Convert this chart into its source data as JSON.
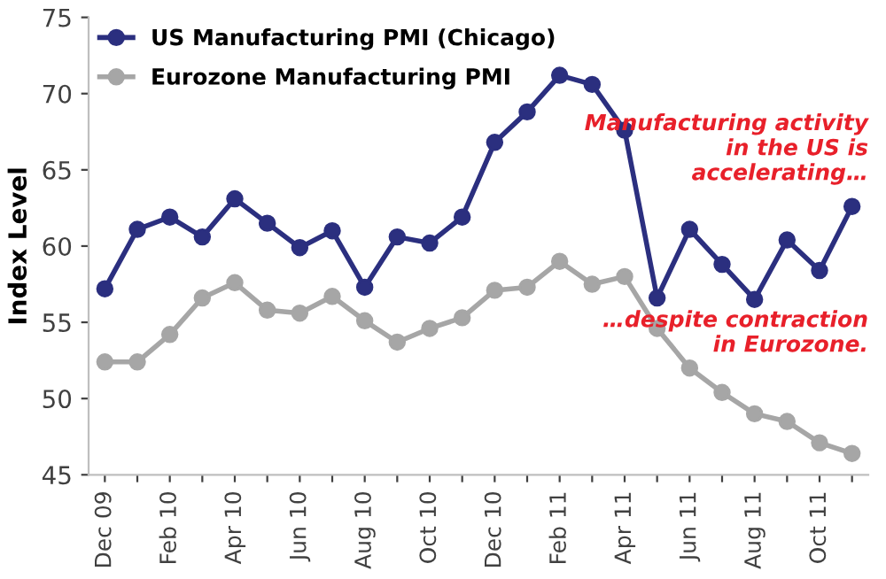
{
  "chart_data": {
    "type": "line",
    "ylabel": "Index Level",
    "categories": [
      "Dec 09",
      null,
      "Feb 10",
      null,
      "Apr 10",
      null,
      "Jun 10",
      null,
      "Aug 10",
      null,
      "Oct 10",
      null,
      "Dec 10",
      null,
      "Feb 11",
      null,
      "Apr 11",
      null,
      "Jun 11",
      null,
      "Aug 11",
      null,
      "Oct 11",
      null
    ],
    "series": [
      {
        "name": "US Manufacturing PMI (Chicago)",
        "color": "#2b2f7f",
        "values": [
          57.2,
          61.1,
          61.9,
          60.6,
          63.1,
          61.5,
          59.9,
          61.0,
          57.3,
          60.6,
          60.2,
          61.9,
          66.8,
          68.8,
          71.2,
          70.6,
          67.6,
          56.6,
          61.1,
          58.8,
          56.5,
          60.4,
          58.4,
          62.6
        ]
      },
      {
        "name": "Eurozone Manufacturing PMI",
        "color": "#a6a6a6",
        "values": [
          52.4,
          52.4,
          54.2,
          56.6,
          57.6,
          55.8,
          55.6,
          56.7,
          55.1,
          53.7,
          54.6,
          55.3,
          57.1,
          57.3,
          59.0,
          57.5,
          58.0,
          54.6,
          52.0,
          50.4,
          49.0,
          48.5,
          47.1,
          46.4
        ]
      }
    ],
    "ylim": [
      45,
      75
    ],
    "yticks": [
      45,
      50,
      55,
      60,
      65,
      70,
      75
    ],
    "grid": false,
    "legend": "top left",
    "marker": "circle",
    "line_style": "solid",
    "annotations": [
      "Manufacturing activity in the US is accelerating…",
      "…despite contraction in Eurozone."
    ]
  }
}
